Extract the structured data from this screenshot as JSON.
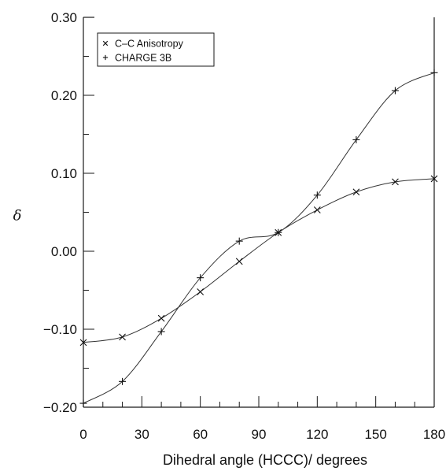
{
  "chart_data": {
    "type": "line",
    "xlabel": "Dihedral angle (HCCC)/ degrees",
    "ylabel": "δ",
    "xlim": [
      0,
      180
    ],
    "ylim": [
      -0.2,
      0.3
    ],
    "x_ticks": [
      "0",
      "30",
      "60",
      "90",
      "120",
      "150",
      "180"
    ],
    "y_ticks": [
      "-0.20",
      "-0.10",
      "0.00",
      "0.10",
      "0.20",
      "0.30"
    ],
    "legend_position": "top-left",
    "grid": false,
    "series": [
      {
        "name": "C–C  Anisotropy",
        "marker": "x",
        "x": [
          0,
          20,
          40,
          60,
          80,
          100,
          120,
          140,
          160,
          180
        ],
        "y": [
          -0.117,
          -0.11,
          -0.086,
          -0.052,
          -0.013,
          0.024,
          0.053,
          0.076,
          0.089,
          0.093
        ]
      },
      {
        "name": "CHARGE 3B",
        "marker": "+",
        "x": [
          0,
          20,
          40,
          60,
          80,
          100,
          120,
          140,
          160,
          180
        ],
        "y": [
          -0.195,
          -0.167,
          -0.103,
          -0.034,
          0.013,
          0.024,
          0.072,
          0.143,
          0.206,
          0.229
        ]
      }
    ]
  }
}
